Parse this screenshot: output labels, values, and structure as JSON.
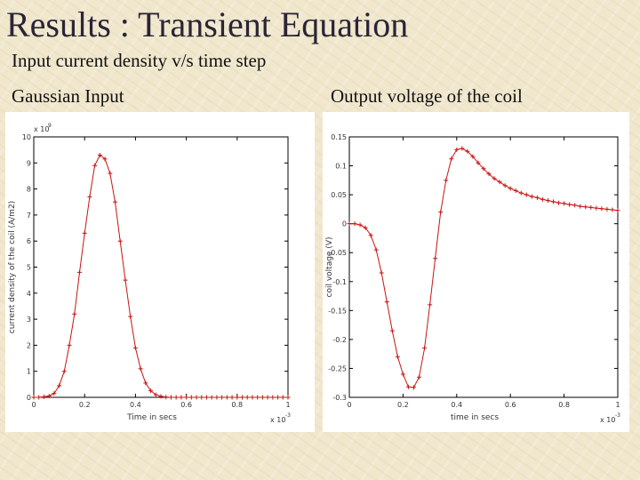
{
  "slide": {
    "title": "Results : Transient Equation",
    "subtitle": "Input current density v/s time step",
    "left_label": "Gaussian Input",
    "right_label": "Output voltage of the coil"
  },
  "colors": {
    "series": "#c81414",
    "background": "#f0e7cd",
    "title": "#2a2536"
  },
  "chart_data": [
    {
      "type": "line",
      "marker": "plus",
      "xlabel": "Time in secs",
      "ylabel": "current density of the coil (A/m2)",
      "x_multiplier_label": "x 10",
      "x_multiplier_exp": "-3",
      "y_multiplier_label": "x 10",
      "y_multiplier_exp": "9",
      "xlim": [
        0,
        1
      ],
      "ylim": [
        0,
        10
      ],
      "x_ticks": [
        0,
        0.2,
        0.4,
        0.6,
        0.8,
        1
      ],
      "x_tick_labels": [
        "0",
        "0.2",
        "0.4",
        "0.6",
        "0.8",
        "1"
      ],
      "y_ticks": [
        0,
        1,
        2,
        3,
        4,
        5,
        6,
        7,
        8,
        9,
        10
      ],
      "y_tick_labels": [
        "0",
        "1",
        "2",
        "3",
        "4",
        "5",
        "6",
        "7",
        "8",
        "9",
        "10"
      ],
      "grid": false,
      "x": [
        0,
        0.02,
        0.04,
        0.06,
        0.08,
        0.1,
        0.12,
        0.14,
        0.16,
        0.18,
        0.2,
        0.22,
        0.24,
        0.26,
        0.28,
        0.3,
        0.32,
        0.34,
        0.36,
        0.38,
        0.4,
        0.42,
        0.44,
        0.46,
        0.48,
        0.5,
        0.52,
        0.54,
        0.56,
        0.58,
        0.6,
        0.62,
        0.64,
        0.66,
        0.68,
        0.7,
        0.72,
        0.74,
        0.76,
        0.78,
        0.8,
        0.82,
        0.84,
        0.86,
        0.88,
        0.9,
        0.92,
        0.94,
        0.96,
        0.98,
        1.0
      ],
      "y": [
        0,
        0,
        0.02,
        0.05,
        0.15,
        0.45,
        1.0,
        2.0,
        3.2,
        4.8,
        6.3,
        7.7,
        8.9,
        9.3,
        9.15,
        8.6,
        7.5,
        6.0,
        4.5,
        3.1,
        1.9,
        1.1,
        0.55,
        0.25,
        0.1,
        0.04,
        0.01,
        0,
        0,
        0,
        0,
        0,
        0,
        0,
        0,
        0,
        0,
        0,
        0,
        0,
        0,
        0,
        0,
        0,
        0,
        0,
        0,
        0,
        0,
        0,
        0
      ]
    },
    {
      "type": "line",
      "marker": "plus",
      "xlabel": "time in secs",
      "ylabel": "coil voltage (V)",
      "x_multiplier_label": "x 10",
      "x_multiplier_exp": "-3",
      "xlim": [
        0,
        1
      ],
      "ylim": [
        -0.3,
        0.15
      ],
      "x_ticks": [
        0,
        0.2,
        0.4,
        0.6,
        0.8,
        1
      ],
      "x_tick_labels": [
        "0",
        "0.2",
        "0.4",
        "0.6",
        "0.8",
        "1"
      ],
      "y_ticks": [
        -0.3,
        -0.25,
        -0.2,
        -0.15,
        -0.1,
        -0.05,
        0,
        0.05,
        0.1,
        0.15
      ],
      "y_tick_labels": [
        "-0.3",
        "-0.25",
        "-0.2",
        "-0.15",
        "-0.1",
        "-0.05",
        "0",
        "0.05",
        "0.1",
        "0.15"
      ],
      "grid": false,
      "x": [
        0,
        0.02,
        0.04,
        0.06,
        0.08,
        0.1,
        0.12,
        0.14,
        0.16,
        0.18,
        0.2,
        0.22,
        0.24,
        0.26,
        0.28,
        0.3,
        0.32,
        0.34,
        0.36,
        0.38,
        0.4,
        0.42,
        0.44,
        0.46,
        0.48,
        0.5,
        0.52,
        0.54,
        0.56,
        0.58,
        0.6,
        0.62,
        0.64,
        0.66,
        0.68,
        0.7,
        0.72,
        0.74,
        0.76,
        0.78,
        0.8,
        0.82,
        0.84,
        0.86,
        0.88,
        0.9,
        0.92,
        0.94,
        0.96,
        0.98,
        1.0
      ],
      "y": [
        0,
        0,
        -0.002,
        -0.007,
        -0.02,
        -0.045,
        -0.085,
        -0.135,
        -0.185,
        -0.23,
        -0.26,
        -0.282,
        -0.283,
        -0.265,
        -0.215,
        -0.14,
        -0.06,
        0.02,
        0.075,
        0.112,
        0.128,
        0.13,
        0.125,
        0.116,
        0.105,
        0.095,
        0.086,
        0.078,
        0.072,
        0.066,
        0.061,
        0.057,
        0.053,
        0.05,
        0.047,
        0.045,
        0.042,
        0.04,
        0.038,
        0.036,
        0.035,
        0.033,
        0.032,
        0.03,
        0.029,
        0.028,
        0.027,
        0.026,
        0.025,
        0.024,
        0.023
      ]
    }
  ]
}
